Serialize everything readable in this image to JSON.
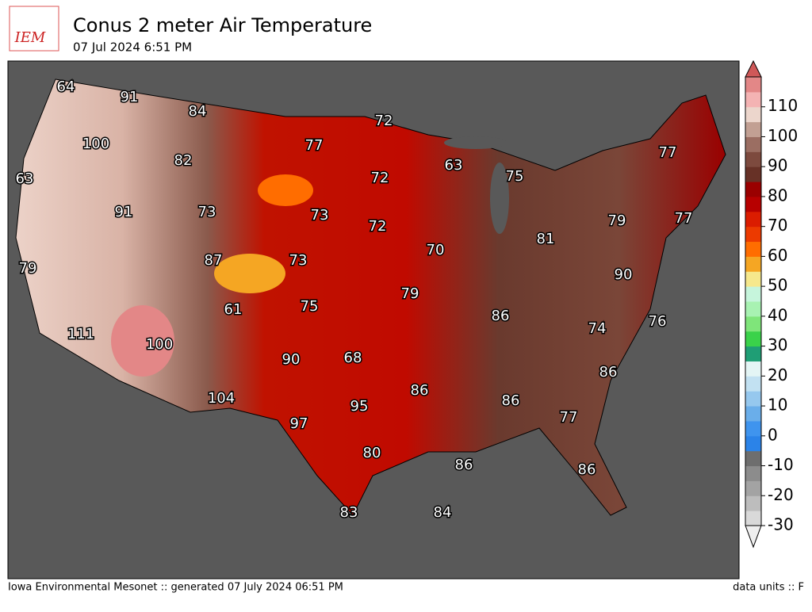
{
  "header": {
    "logo": "IEM",
    "title": "Conus 2 meter Air Temperature",
    "subtitle": "07 Jul 2024 6:51 PM"
  },
  "station_values": [
    64,
    91,
    84,
    72,
    77,
    100,
    82,
    63,
    75,
    77,
    72,
    63,
    73,
    73,
    91,
    72,
    79,
    77,
    81,
    87,
    73,
    70,
    79,
    90,
    75,
    61,
    79,
    86,
    76,
    74,
    111,
    100,
    90,
    68,
    86,
    86,
    104,
    95,
    86,
    77,
    97,
    80,
    86,
    86,
    83,
    84
  ],
  "colorbar": {
    "range": [
      -30,
      120
    ],
    "ticks": [
      -30,
      -20,
      -10,
      0,
      10,
      20,
      30,
      40,
      50,
      60,
      70,
      80,
      90,
      100,
      110
    ],
    "colors": [
      "#efefef",
      "#d9d9d9",
      "#bdbdbd",
      "#a3a3a3",
      "#8c8c8c",
      "#6e6e6e",
      "#2b83e8",
      "#3f94ee",
      "#6aaeea",
      "#96c8ee",
      "#c2e1f2",
      "#e4f5f5",
      "#1f9e75",
      "#3ad24a",
      "#7fe57a",
      "#a8f2b2",
      "#c6f5dc",
      "#f6e88c",
      "#f5a623",
      "#ff6d00",
      "#ec3a00",
      "#db1c00",
      "#b70000",
      "#9a0000",
      "#673126",
      "#7d4a3e",
      "#9b6e62",
      "#c2a093",
      "#ecd6cc",
      "#f4b3b3",
      "#e38787",
      "#cf5858"
    ]
  },
  "footer": {
    "left": "Iowa Environmental Mesonet :: generated 07 July 2024 06:51 PM",
    "right": "data units :: F"
  }
}
